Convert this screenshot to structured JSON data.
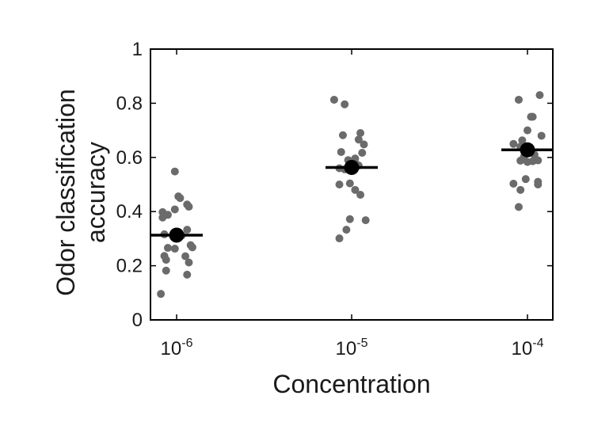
{
  "chart_data": {
    "type": "scatter",
    "title": "",
    "xlabel": "Concentration",
    "ylabel_lines": [
      "Odor classification",
      "accuracy"
    ],
    "ylim": [
      0,
      1
    ],
    "yticks": [
      "0",
      "0.2",
      "0.4",
      "0.6",
      "0.8",
      "1"
    ],
    "categories": [
      {
        "base": "10",
        "exp": "-6"
      },
      {
        "base": "10",
        "exp": "-5"
      },
      {
        "base": "10",
        "exp": "-4"
      }
    ],
    "means": [
      0.313,
      0.563,
      0.628
    ],
    "points": [
      [
        {
          "dx": -0.09,
          "y": 0.096
        },
        {
          "dx": -0.08,
          "y": 0.398
        },
        {
          "dx": -0.08,
          "y": 0.378
        },
        {
          "dx": -0.07,
          "y": 0.316
        },
        {
          "dx": -0.07,
          "y": 0.236
        },
        {
          "dx": -0.06,
          "y": 0.222
        },
        {
          "dx": -0.06,
          "y": 0.182
        },
        {
          "dx": -0.05,
          "y": 0.388
        },
        {
          "dx": -0.05,
          "y": 0.266
        },
        {
          "dx": -0.01,
          "y": 0.548
        },
        {
          "dx": -0.01,
          "y": 0.408
        },
        {
          "dx": -0.01,
          "y": 0.263
        },
        {
          "dx": 0.01,
          "y": 0.456
        },
        {
          "dx": 0.02,
          "y": 0.45
        },
        {
          "dx": 0.03,
          "y": 0.312
        },
        {
          "dx": 0.05,
          "y": 0.235
        },
        {
          "dx": 0.06,
          "y": 0.426
        },
        {
          "dx": 0.06,
          "y": 0.333
        },
        {
          "dx": 0.06,
          "y": 0.167
        },
        {
          "dx": 0.07,
          "y": 0.418
        },
        {
          "dx": 0.07,
          "y": 0.212
        },
        {
          "dx": 0.08,
          "y": 0.276
        },
        {
          "dx": 0.09,
          "y": 0.268
        }
      ],
      [
        {
          "dx": -0.1,
          "y": 0.813
        },
        {
          "dx": -0.07,
          "y": 0.301
        },
        {
          "dx": -0.07,
          "y": 0.56
        },
        {
          "dx": -0.07,
          "y": 0.5
        },
        {
          "dx": -0.06,
          "y": 0.62
        },
        {
          "dx": -0.05,
          "y": 0.682
        },
        {
          "dx": -0.04,
          "y": 0.796
        },
        {
          "dx": -0.04,
          "y": 0.556
        },
        {
          "dx": -0.03,
          "y": 0.333
        },
        {
          "dx": -0.02,
          "y": 0.59
        },
        {
          "dx": -0.01,
          "y": 0.372
        },
        {
          "dx": -0.01,
          "y": 0.504
        },
        {
          "dx": 0.02,
          "y": 0.596
        },
        {
          "dx": 0.02,
          "y": 0.58
        },
        {
          "dx": 0.02,
          "y": 0.48
        },
        {
          "dx": 0.04,
          "y": 0.666
        },
        {
          "dx": 0.04,
          "y": 0.57
        },
        {
          "dx": 0.05,
          "y": 0.69
        },
        {
          "dx": 0.05,
          "y": 0.462
        },
        {
          "dx": 0.06,
          "y": 0.617
        },
        {
          "dx": 0.07,
          "y": 0.648
        },
        {
          "dx": 0.08,
          "y": 0.368
        }
      ],
      [
        {
          "dx": -0.08,
          "y": 0.65
        },
        {
          "dx": -0.08,
          "y": 0.503
        },
        {
          "dx": -0.05,
          "y": 0.417
        },
        {
          "dx": -0.05,
          "y": 0.813
        },
        {
          "dx": -0.04,
          "y": 0.64
        },
        {
          "dx": -0.04,
          "y": 0.588
        },
        {
          "dx": -0.04,
          "y": 0.48
        },
        {
          "dx": -0.03,
          "y": 0.663
        },
        {
          "dx": -0.02,
          "y": 0.603
        },
        {
          "dx": -0.01,
          "y": 0.52
        },
        {
          "dx": -0.01,
          "y": 0.612
        },
        {
          "dx": 0.0,
          "y": 0.7
        },
        {
          "dx": 0.0,
          "y": 0.583
        },
        {
          "dx": 0.02,
          "y": 0.75
        },
        {
          "dx": 0.03,
          "y": 0.75
        },
        {
          "dx": 0.03,
          "y": 0.586
        },
        {
          "dx": 0.04,
          "y": 0.61
        },
        {
          "dx": 0.06,
          "y": 0.589
        },
        {
          "dx": 0.06,
          "y": 0.51
        },
        {
          "dx": 0.06,
          "y": 0.5
        },
        {
          "dx": 0.07,
          "y": 0.83
        },
        {
          "dx": 0.08,
          "y": 0.68
        }
      ]
    ],
    "point_color": "#6b6b6b",
    "mean_color": "#000000",
    "grid": false,
    "legend": "none"
  }
}
